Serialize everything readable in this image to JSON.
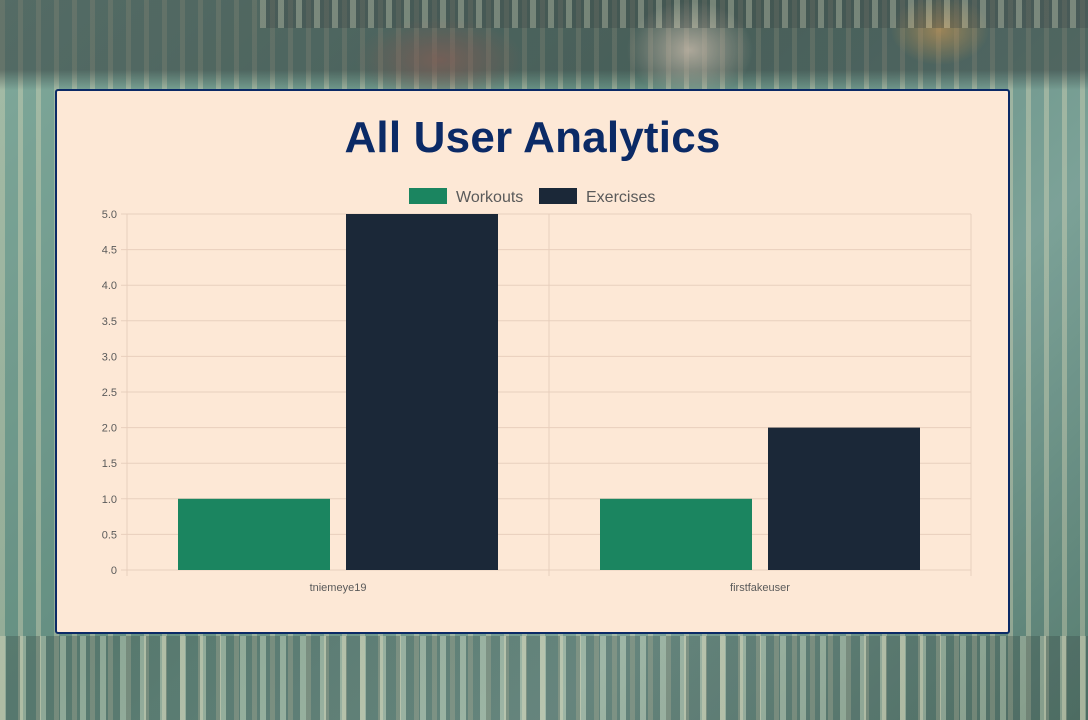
{
  "page": {
    "title": "All User Analytics"
  },
  "colors": {
    "card_background": "#fde8d6",
    "card_border": "#0b2a66",
    "title": "#0b2a66",
    "workouts": "#1b8560",
    "exercises": "#1b2838",
    "grid": "#e8cfbd",
    "tick_text": "#5a5a5a"
  },
  "chart_data": {
    "type": "bar",
    "categories": [
      "tniemeye19",
      "firstfakeuser"
    ],
    "series": [
      {
        "name": "Workouts",
        "values": [
          1,
          1
        ],
        "color": "#1b8560"
      },
      {
        "name": "Exercises",
        "values": [
          5,
          2
        ],
        "color": "#1b2838"
      }
    ],
    "ylim": [
      0,
      5
    ],
    "ytick_step": 0.5,
    "yticks": [
      "0",
      "0.5",
      "1.0",
      "1.5",
      "2.0",
      "2.5",
      "3.0",
      "3.5",
      "4.0",
      "4.5",
      "5.0"
    ],
    "legend_position": "top-center",
    "grid": true,
    "xlabel": "",
    "ylabel": ""
  }
}
